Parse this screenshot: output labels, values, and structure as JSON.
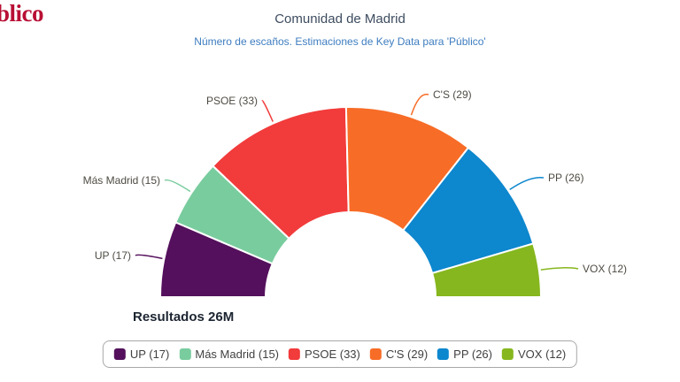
{
  "brand": {
    "logo_text": "blico",
    "logo_color": "#b80f34"
  },
  "header": {
    "title": "Comunidad de Madrid",
    "subtitle": "Número de escaños. Estimaciones de Key Data para 'Público'"
  },
  "annotation": {
    "results_label": "Resultados 26M"
  },
  "legend": {
    "position": "bottom-center",
    "border_color": "#a8a8a8"
  },
  "chart_data": {
    "type": "pie",
    "subtype": "half-donut-parliament",
    "title": "Comunidad de Madrid",
    "subtitle": "Número de escaños. Estimaciones de Key Data para 'Público'",
    "unit": "escaños",
    "total_seats": 132,
    "annotation": "Resultados 26M",
    "legend_position": "bottom-center",
    "series": [
      {
        "name": "UP",
        "seats": 17,
        "label": "UP (17)",
        "color": "#54105c"
      },
      {
        "name": "Más Madrid",
        "seats": 15,
        "label": "Más Madrid (15)",
        "color": "#79cc9e"
      },
      {
        "name": "PSOE",
        "seats": 33,
        "label": "PSOE (33)",
        "color": "#f23b3b"
      },
      {
        "name": "C'S",
        "seats": 29,
        "label": "C'S (29)",
        "color": "#f76c27"
      },
      {
        "name": "PP",
        "seats": 26,
        "label": "PP (26)",
        "color": "#0d87ce"
      },
      {
        "name": "VOX",
        "seats": 12,
        "label": "VOX (12)",
        "color": "#86b71e"
      }
    ]
  }
}
